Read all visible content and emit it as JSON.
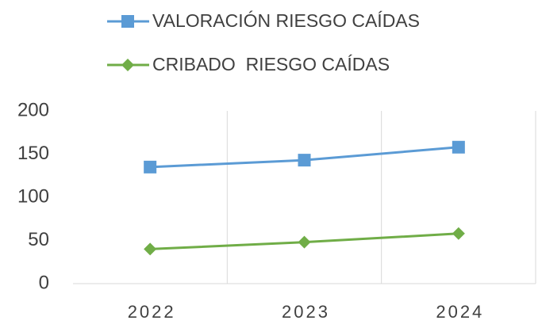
{
  "chart_data": {
    "type": "line",
    "categories": [
      "2022",
      "2023",
      "2024"
    ],
    "series": [
      {
        "name": "VALORACIÓN RIESGO CAÍDAS",
        "color": "#5b9bd5",
        "marker": "square",
        "values": [
          135,
          143,
          158
        ]
      },
      {
        "name": "CRIBADO  RIESGO CAÍDAS",
        "color": "#70ad47",
        "marker": "diamond",
        "values": [
          40,
          48,
          58
        ]
      }
    ],
    "ylim": [
      0,
      200
    ],
    "yticks": [
      0,
      50,
      100,
      150,
      200
    ],
    "grid": true,
    "legend": "top"
  }
}
